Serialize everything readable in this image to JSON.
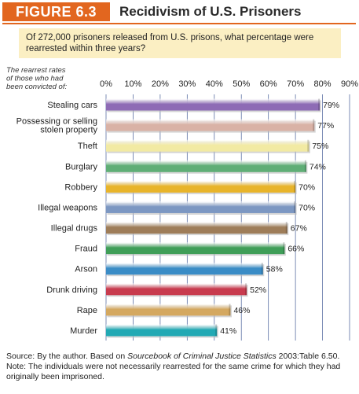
{
  "figure": {
    "label": "FIGURE 6.3",
    "title": "Recidivism of U.S. Prisoners",
    "question": "Of 272,000 prisoners released from U.S. prisons, what percentage were rearrested within three years?",
    "source_prefix": "Source: By the author. Based on ",
    "source_title": "Sourcebook of Criminal Justice Statistics",
    "source_suffix": " 2003:Table 6.50.",
    "note": "Note: The individuals were not necessarily rearrested for the same crime for which they had originally been imprisoned."
  },
  "colors": {
    "accent": "#e2661f",
    "question_bg": "#fbefc3"
  },
  "chart_data": {
    "type": "bar",
    "orientation": "horizontal",
    "category_header": [
      "The rearrest rates",
      "of those who had",
      "been convicted of:"
    ],
    "x_ticks": [
      "0%",
      "10%",
      "20%",
      "30%",
      "40%",
      "50%",
      "60%",
      "70%",
      "80%",
      "90%"
    ],
    "xlim": [
      0,
      90
    ],
    "grid": true,
    "categories": [
      [
        "Stealing cars"
      ],
      [
        "Possessing or selling",
        "stolen property"
      ],
      [
        "Theft"
      ],
      [
        "Burglary"
      ],
      [
        "Robbery"
      ],
      [
        "Illegal weapons"
      ],
      [
        "Illegal drugs"
      ],
      [
        "Fraud"
      ],
      [
        "Arson"
      ],
      [
        "Drunk driving"
      ],
      [
        "Rape"
      ],
      [
        "Murder"
      ]
    ],
    "values": [
      79,
      77,
      75,
      74,
      70,
      70,
      67,
      66,
      58,
      52,
      46,
      41
    ],
    "value_labels": [
      "79%",
      "77%",
      "75%",
      "74%",
      "70%",
      "70%",
      "67%",
      "66%",
      "58%",
      "52%",
      "46%",
      "41%"
    ],
    "bar_colors": [
      "#8e6bb5",
      "#d9b2a6",
      "#f2eaa3",
      "#5fae76",
      "#e8b42a",
      "#7c97c2",
      "#9e7d59",
      "#3f9e58",
      "#3a8cc6",
      "#c83b4e",
      "#d4a860",
      "#22a9b4"
    ]
  }
}
